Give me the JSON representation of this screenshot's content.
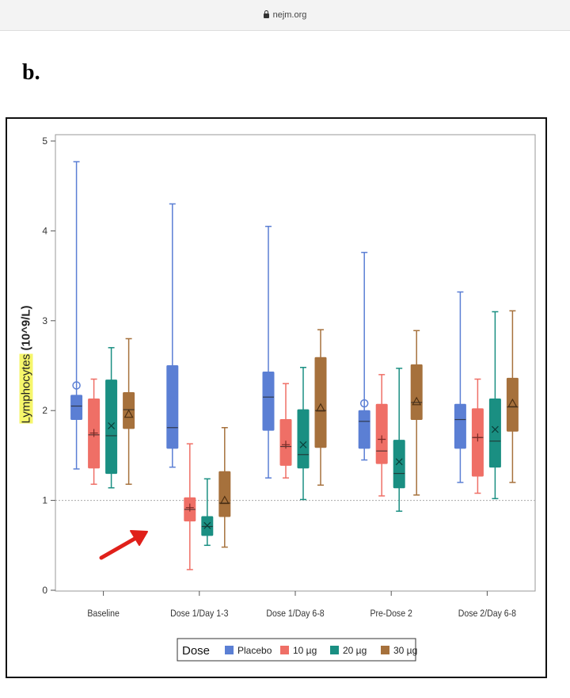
{
  "browser": {
    "url": "nejm.org"
  },
  "panel_label": "b.",
  "chart_data": {
    "type": "box",
    "xlabel": "",
    "ylabel_highlighted": "Lymphocytes",
    "ylabel_unit": "(10^9/L)",
    "ylim": [
      0,
      5
    ],
    "yticks": [
      0,
      1,
      2,
      3,
      4,
      5
    ],
    "reference_line": 1,
    "grid": false,
    "legend_title": "Dose",
    "legend_placement": "bottom",
    "categories": [
      "Baseline",
      "Dose 1/Day 1-3",
      "Dose 1/Day 6-8",
      "Pre-Dose 2",
      "Dose 2/Day 6-8"
    ],
    "series": [
      {
        "name": "Placebo",
        "color": "#5b7fd4",
        "marker": "circle",
        "boxes": [
          {
            "min": 1.35,
            "q1": 1.9,
            "median": 2.05,
            "q3": 2.17,
            "max": 4.77,
            "mean": 2.28
          },
          {
            "min": 1.37,
            "q1": 1.58,
            "median": 1.81,
            "q3": 2.5,
            "max": 4.3,
            "mean": 2.18
          },
          {
            "min": 1.25,
            "q1": 1.78,
            "median": 2.15,
            "q3": 2.43,
            "max": 4.05,
            "mean": 2.25
          },
          {
            "min": 1.45,
            "q1": 1.58,
            "median": 1.88,
            "q3": 2.0,
            "max": 3.76,
            "mean": 2.08
          },
          {
            "min": 1.2,
            "q1": 1.58,
            "median": 1.9,
            "q3": 2.07,
            "max": 3.32,
            "mean": 2.01
          }
        ]
      },
      {
        "name": "10 µg",
        "color": "#ef6f66",
        "marker": "plus",
        "boxes": [
          {
            "min": 1.18,
            "q1": 1.36,
            "median": 1.73,
            "q3": 2.13,
            "max": 2.35,
            "mean": 1.75
          },
          {
            "min": 0.23,
            "q1": 0.77,
            "median": 0.9,
            "q3": 1.03,
            "max": 1.63,
            "mean": 0.92
          },
          {
            "min": 1.25,
            "q1": 1.39,
            "median": 1.6,
            "q3": 1.9,
            "max": 2.3,
            "mean": 1.62
          },
          {
            "min": 1.05,
            "q1": 1.41,
            "median": 1.55,
            "q3": 2.07,
            "max": 2.4,
            "mean": 1.68
          },
          {
            "min": 1.08,
            "q1": 1.27,
            "median": 1.7,
            "q3": 2.02,
            "max": 2.35,
            "mean": 1.7
          }
        ]
      },
      {
        "name": "20 µg",
        "color": "#1a8f82",
        "marker": "x",
        "boxes": [
          {
            "min": 1.14,
            "q1": 1.3,
            "median": 1.72,
            "q3": 2.34,
            "max": 2.7,
            "mean": 1.83
          },
          {
            "min": 0.5,
            "q1": 0.61,
            "median": 0.71,
            "q3": 0.82,
            "max": 1.24,
            "mean": 0.72
          },
          {
            "min": 1.01,
            "q1": 1.36,
            "median": 1.51,
            "q3": 2.01,
            "max": 2.48,
            "mean": 1.62
          },
          {
            "min": 0.88,
            "q1": 1.14,
            "median": 1.3,
            "q3": 1.67,
            "max": 2.47,
            "mean": 1.43
          },
          {
            "min": 1.02,
            "q1": 1.37,
            "median": 1.66,
            "q3": 2.13,
            "max": 3.1,
            "mean": 1.79
          }
        ]
      },
      {
        "name": "30 µg",
        "color": "#a6713c",
        "marker": "triangle",
        "boxes": [
          {
            "min": 1.18,
            "q1": 1.8,
            "median": 2.01,
            "q3": 2.2,
            "max": 2.8,
            "mean": 1.96
          },
          {
            "min": 0.48,
            "q1": 0.82,
            "median": 0.97,
            "q3": 1.32,
            "max": 1.81,
            "mean": 1.0
          },
          {
            "min": 1.17,
            "q1": 1.59,
            "median": 2.0,
            "q3": 2.59,
            "max": 2.9,
            "mean": 2.03
          },
          {
            "min": 1.06,
            "q1": 1.9,
            "median": 2.09,
            "q3": 2.51,
            "max": 2.89,
            "mean": 2.1
          },
          {
            "min": 1.2,
            "q1": 1.77,
            "median": 2.04,
            "q3": 2.36,
            "max": 3.11,
            "mean": 2.08
          }
        ]
      }
    ]
  }
}
